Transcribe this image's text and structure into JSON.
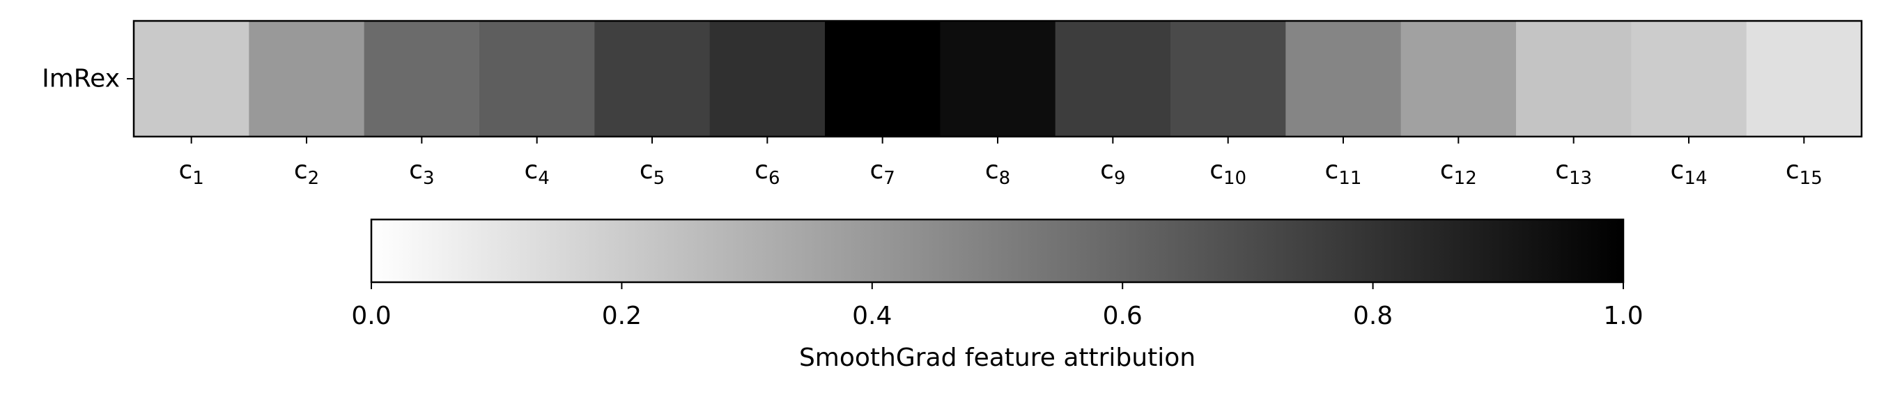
{
  "chart_data": {
    "type": "heatmap",
    "rows": [
      "ImRex"
    ],
    "columns": [
      {
        "base": "c",
        "sub": "1"
      },
      {
        "base": "c",
        "sub": "2"
      },
      {
        "base": "c",
        "sub": "3"
      },
      {
        "base": "c",
        "sub": "4"
      },
      {
        "base": "c",
        "sub": "5"
      },
      {
        "base": "c",
        "sub": "6"
      },
      {
        "base": "c",
        "sub": "7"
      },
      {
        "base": "c",
        "sub": "8"
      },
      {
        "base": "c",
        "sub": "9"
      },
      {
        "base": "c",
        "sub": "10"
      },
      {
        "base": "c",
        "sub": "11"
      },
      {
        "base": "c",
        "sub": "12"
      },
      {
        "base": "c",
        "sub": "13"
      },
      {
        "base": "c",
        "sub": "14"
      },
      {
        "base": "c",
        "sub": "15"
      }
    ],
    "values": [
      [
        0.21,
        0.4,
        0.58,
        0.63,
        0.75,
        0.81,
        1.0,
        0.95,
        0.76,
        0.71,
        0.48,
        0.37,
        0.23,
        0.2,
        0.12
      ]
    ],
    "colormap": "Greys",
    "vmin": 0.0,
    "vmax": 1.0,
    "colorbar": {
      "label": "SmoothGrad feature attribution",
      "ticks": [
        "0.0",
        "0.2",
        "0.4",
        "0.6",
        "0.8",
        "1.0"
      ],
      "orientation": "horizontal",
      "placement": "bottom"
    }
  }
}
